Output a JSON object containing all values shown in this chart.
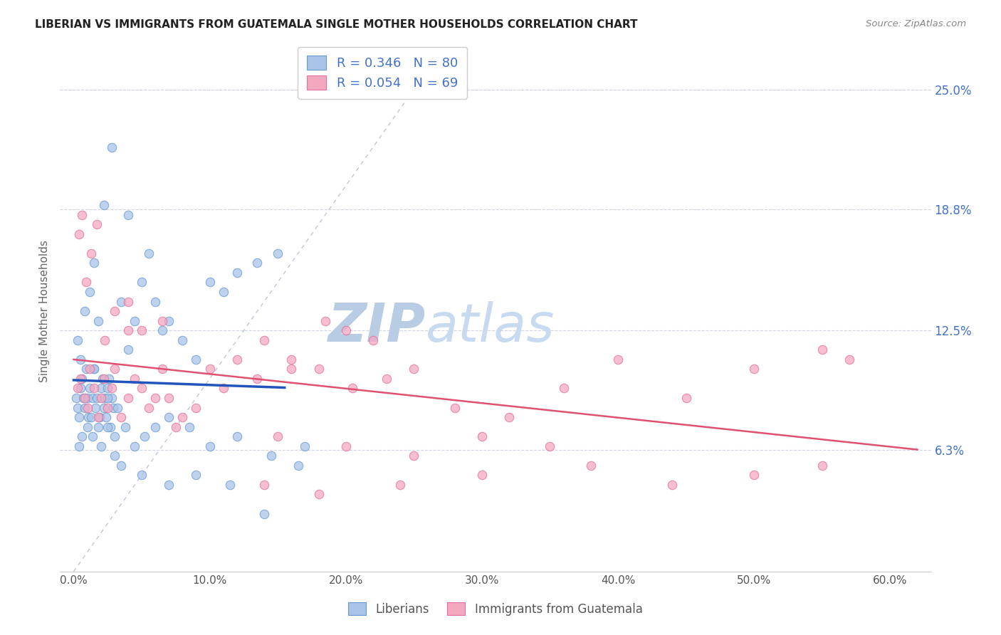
{
  "title": "LIBERIAN VS IMMIGRANTS FROM GUATEMALA SINGLE MOTHER HOUSEHOLDS CORRELATION CHART",
  "source": "Source: ZipAtlas.com",
  "ylabel": "Single Mother Households",
  "xlabel_ticks": [
    "0.0%",
    "10.0%",
    "20.0%",
    "30.0%",
    "40.0%",
    "50.0%",
    "60.0%"
  ],
  "xlabel_vals": [
    0.0,
    10.0,
    20.0,
    30.0,
    40.0,
    50.0,
    60.0
  ],
  "ylabel_ticks": [
    "6.3%",
    "12.5%",
    "18.8%",
    "25.0%"
  ],
  "ylabel_vals": [
    6.3,
    12.5,
    18.8,
    25.0
  ],
  "xlim": [
    -1.0,
    63.0
  ],
  "ylim": [
    0.0,
    27.0
  ],
  "blue_R": 0.346,
  "blue_N": 80,
  "pink_R": 0.054,
  "pink_N": 69,
  "blue_color": "#a8c4e8",
  "pink_color": "#f4a8c0",
  "blue_edge_color": "#6898d0",
  "pink_edge_color": "#e070a0",
  "blue_line_color": "#2255bb",
  "pink_line_color": "#e05070",
  "diag_line_color": "#a0b0c8",
  "watermark_color": "#c8d8ee",
  "legend_blue_label": "R = 0.346   N = 80",
  "legend_pink_label": "R = 0.054   N = 69",
  "bottom_legend_blue": "Liberians",
  "bottom_legend_pink": "Immigrants from Guatemala",
  "title_color": "#222222",
  "axis_label_color": "#666666",
  "right_tick_color": "#4472c4",
  "grid_color": "#d0d4e0",
  "seed": 42,
  "blue_x": [
    0.2,
    0.3,
    0.4,
    0.5,
    0.6,
    0.7,
    0.8,
    0.9,
    1.0,
    1.1,
    1.2,
    1.3,
    1.4,
    1.5,
    1.6,
    1.7,
    1.8,
    1.9,
    2.0,
    2.1,
    2.2,
    2.3,
    2.4,
    2.5,
    2.6,
    2.7,
    2.8,
    2.9,
    3.0,
    3.2,
    0.3,
    0.5,
    0.8,
    1.2,
    1.5,
    1.8,
    2.2,
    2.8,
    3.5,
    4.0,
    4.5,
    5.0,
    5.5,
    6.0,
    6.5,
    7.0,
    8.0,
    9.0,
    10.0,
    11.0,
    12.0,
    13.5,
    15.0,
    0.4,
    0.6,
    1.0,
    1.4,
    2.0,
    2.5,
    3.0,
    3.8,
    4.5,
    5.2,
    6.0,
    7.0,
    8.5,
    10.0,
    12.0,
    14.5,
    17.0,
    1.5,
    2.5,
    3.5,
    5.0,
    7.0,
    9.0,
    11.5,
    14.0,
    16.5,
    4.0
  ],
  "blue_y": [
    9.0,
    8.5,
    8.0,
    9.5,
    10.0,
    9.0,
    8.5,
    10.5,
    9.0,
    8.0,
    9.5,
    8.0,
    9.0,
    10.5,
    8.5,
    9.0,
    7.5,
    8.0,
    9.5,
    10.0,
    8.5,
    9.0,
    8.0,
    9.5,
    10.0,
    7.5,
    9.0,
    8.5,
    7.0,
    8.5,
    12.0,
    11.0,
    13.5,
    14.5,
    16.0,
    13.0,
    19.0,
    22.0,
    14.0,
    11.5,
    13.0,
    15.0,
    16.5,
    14.0,
    12.5,
    13.0,
    12.0,
    11.0,
    15.0,
    14.5,
    15.5,
    16.0,
    16.5,
    6.5,
    7.0,
    7.5,
    7.0,
    6.5,
    7.5,
    6.0,
    7.5,
    6.5,
    7.0,
    7.5,
    8.0,
    7.5,
    6.5,
    7.0,
    6.0,
    6.5,
    10.5,
    9.0,
    5.5,
    5.0,
    4.5,
    5.0,
    4.5,
    3.0,
    5.5,
    18.5
  ],
  "pink_x": [
    0.3,
    0.5,
    0.8,
    1.0,
    1.2,
    1.5,
    1.8,
    2.0,
    2.2,
    2.5,
    2.8,
    3.0,
    3.5,
    4.0,
    4.5,
    5.0,
    5.5,
    6.0,
    6.5,
    7.0,
    0.4,
    0.6,
    0.9,
    1.3,
    1.7,
    2.3,
    3.0,
    4.0,
    5.0,
    6.5,
    8.0,
    10.0,
    12.0,
    14.0,
    16.0,
    18.5,
    20.0,
    22.0,
    7.5,
    9.0,
    11.0,
    13.5,
    16.0,
    18.0,
    20.5,
    23.0,
    25.0,
    28.0,
    32.0,
    36.0,
    40.0,
    45.0,
    50.0,
    55.0,
    57.0,
    15.0,
    20.0,
    25.0,
    30.0,
    35.0,
    14.0,
    18.0,
    24.0,
    30.0,
    38.0,
    44.0,
    50.0,
    55.0,
    4.0
  ],
  "pink_y": [
    9.5,
    10.0,
    9.0,
    8.5,
    10.5,
    9.5,
    8.0,
    9.0,
    10.0,
    8.5,
    9.5,
    10.5,
    8.0,
    9.0,
    10.0,
    9.5,
    8.5,
    9.0,
    10.5,
    9.0,
    17.5,
    18.5,
    15.0,
    16.5,
    18.0,
    12.0,
    13.5,
    14.0,
    12.5,
    13.0,
    8.0,
    10.5,
    11.0,
    12.0,
    10.5,
    13.0,
    12.5,
    12.0,
    7.5,
    8.5,
    9.5,
    10.0,
    11.0,
    10.5,
    9.5,
    10.0,
    10.5,
    8.5,
    8.0,
    9.5,
    11.0,
    9.0,
    10.5,
    11.5,
    11.0,
    7.0,
    6.5,
    6.0,
    7.0,
    6.5,
    4.5,
    4.0,
    4.5,
    5.0,
    5.5,
    4.5,
    5.0,
    5.5,
    12.5
  ]
}
